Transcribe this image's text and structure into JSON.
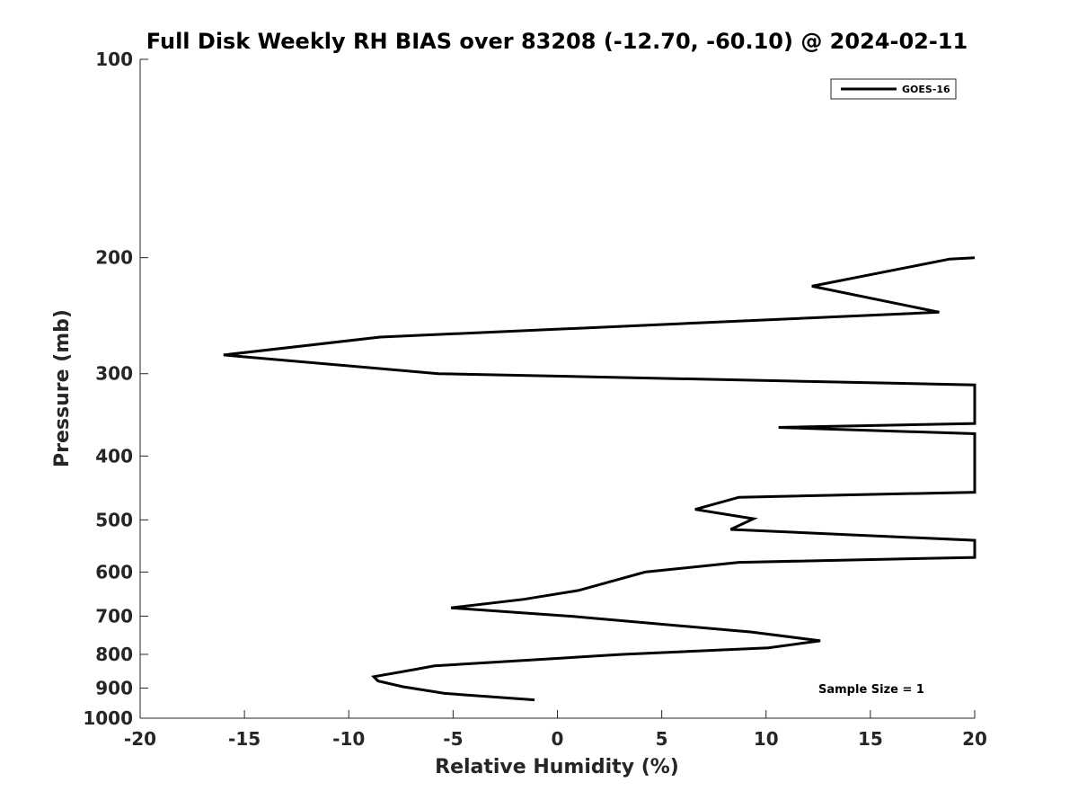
{
  "chart_data": {
    "type": "line",
    "title": "Full Disk Weekly RH BIAS over 83208 (-12.70, -60.10) @ 2024-02-11",
    "xlabel": "Relative Humidity (%)",
    "ylabel": "Pressure (mb)",
    "xlim": [
      -20,
      20
    ],
    "ylim": [
      100,
      1000
    ],
    "y_scale": "log",
    "y_reversed": true,
    "grid": false,
    "legend_placement": "top-right",
    "x_ticks": [
      "-20",
      "-15",
      "-10",
      "-5",
      "0",
      "5",
      "10",
      "15",
      "20"
    ],
    "y_ticks": [
      "100",
      "200",
      "300",
      "400",
      "500",
      "600",
      "700",
      "800",
      "900",
      "1000"
    ],
    "series": [
      {
        "name": "GOES-16",
        "color": "#000000",
        "points": [
          {
            "x": 20.0,
            "y": 200
          },
          {
            "x": 18.8,
            "y": 201
          },
          {
            "x": 12.2,
            "y": 221
          },
          {
            "x": 18.3,
            "y": 242
          },
          {
            "x": -8.5,
            "y": 264
          },
          {
            "x": -16.0,
            "y": 281
          },
          {
            "x": -5.7,
            "y": 300
          },
          {
            "x": 20.0,
            "y": 312
          },
          {
            "x": 20.0,
            "y": 357
          },
          {
            "x": 10.6,
            "y": 362
          },
          {
            "x": 20.0,
            "y": 370
          },
          {
            "x": 20.0,
            "y": 454
          },
          {
            "x": 8.7,
            "y": 462
          },
          {
            "x": 6.6,
            "y": 482
          },
          {
            "x": 9.4,
            "y": 498
          },
          {
            "x": 8.3,
            "y": 517
          },
          {
            "x": 20.0,
            "y": 537
          },
          {
            "x": 20.0,
            "y": 570
          },
          {
            "x": 8.7,
            "y": 580
          },
          {
            "x": 4.2,
            "y": 600
          },
          {
            "x": 1.0,
            "y": 640
          },
          {
            "x": -1.6,
            "y": 660
          },
          {
            "x": -5.1,
            "y": 680
          },
          {
            "x": 0.6,
            "y": 700
          },
          {
            "x": 9.3,
            "y": 740
          },
          {
            "x": 12.6,
            "y": 763
          },
          {
            "x": 10.1,
            "y": 782
          },
          {
            "x": 3.1,
            "y": 800
          },
          {
            "x": -5.9,
            "y": 833
          },
          {
            "x": -6.8,
            "y": 843
          },
          {
            "x": -8.8,
            "y": 865
          },
          {
            "x": -8.6,
            "y": 878
          },
          {
            "x": -7.4,
            "y": 896
          },
          {
            "x": -5.4,
            "y": 917
          },
          {
            "x": -1.1,
            "y": 938
          }
        ]
      }
    ],
    "annotations": [
      "Sample Size = 1"
    ]
  }
}
